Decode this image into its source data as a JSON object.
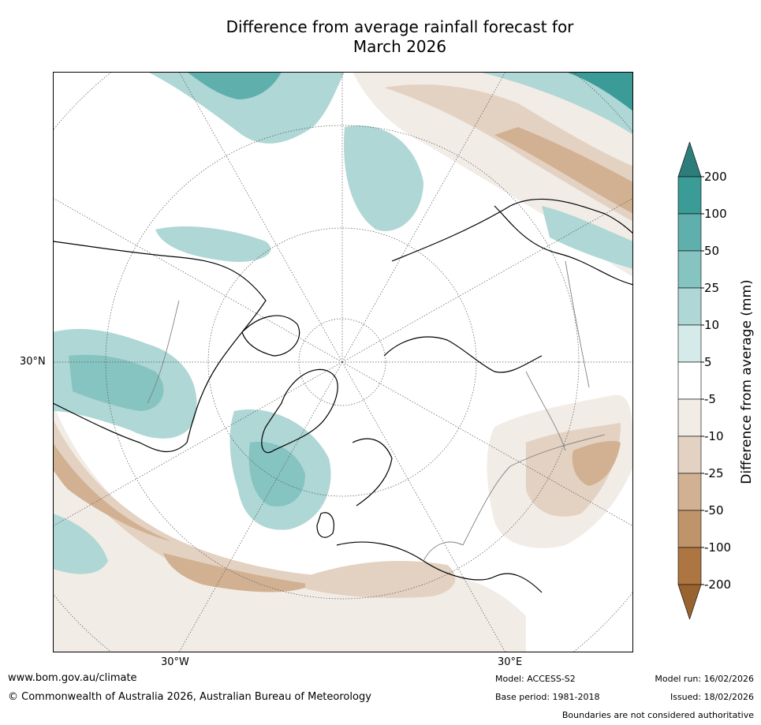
{
  "title_line1": "Difference from average rainfall forecast for",
  "title_line2": "March 2026",
  "map": {
    "lat_label": "30°N",
    "lon_labels": [
      "30°W",
      "30°E"
    ]
  },
  "colorbar": {
    "title": "Difference from average (mm)",
    "ticks": [
      "200",
      "100",
      "50",
      "25",
      "10",
      "5",
      "-5",
      "-10",
      "-25",
      "-50",
      "-100",
      "-200"
    ],
    "colors_top_to_bottom": [
      "#2e7d7b",
      "#3a9b97",
      "#5fb0ad",
      "#86c4c1",
      "#aed7d5",
      "#d5ebea",
      "#ffffff",
      "#f2ece6",
      "#e3d1c1",
      "#d1b192",
      "#c0946a",
      "#ad7542",
      "#98632f"
    ]
  },
  "footer": {
    "website": "www.bom.gov.au/climate",
    "copyright": "© Commonwealth of Australia 2026, Australian Bureau of Meteorology",
    "model": "Model: ACCESS-S2",
    "model_run": "Model run: 16/02/2026",
    "base_period": "Base period: 1981-2018",
    "issued": "Issued: 18/02/2026",
    "boundaries": "Boundaries are not considered authoritative"
  }
}
